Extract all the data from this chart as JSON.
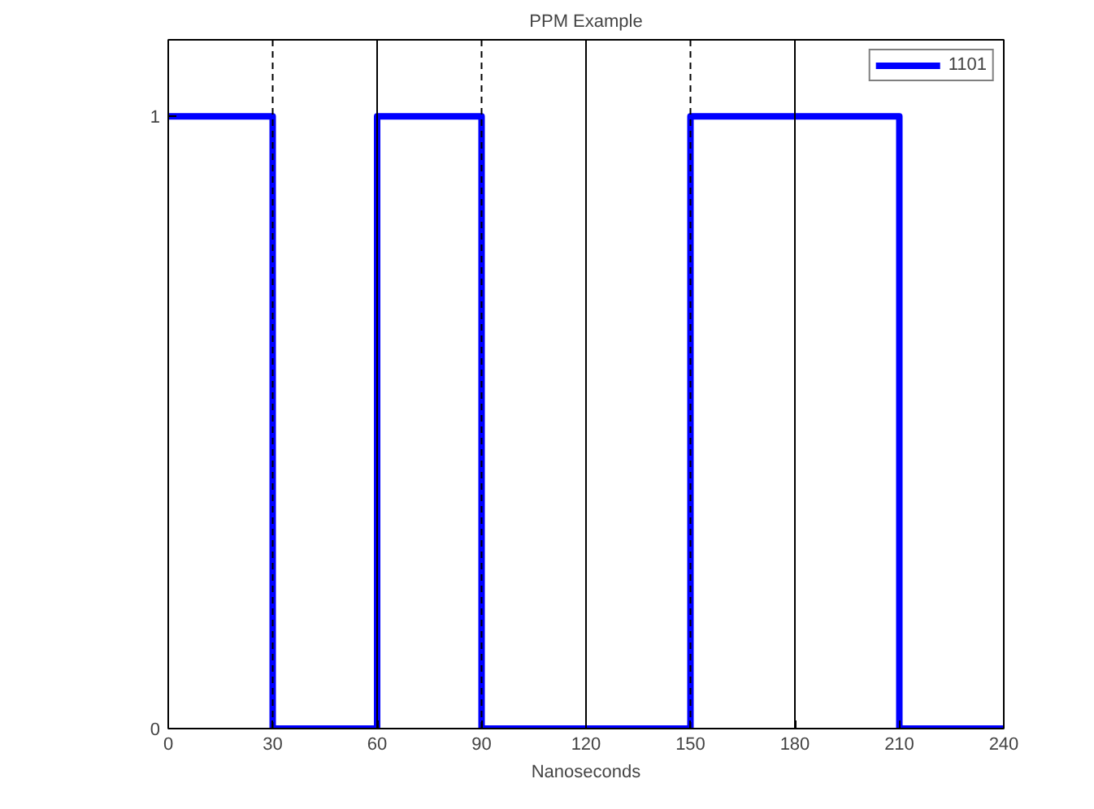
{
  "chart_data": {
    "type": "step",
    "title": "PPM Example",
    "xlabel": "Nanoseconds",
    "x": [
      0,
      30,
      60,
      90,
      150,
      210,
      240
    ],
    "series": [
      {
        "name": "1101",
        "color": "#0000ff",
        "values": [
          1,
          0,
          1,
          0,
          1,
          0,
          0
        ]
      }
    ],
    "xlim": [
      0,
      240
    ],
    "xticks": [
      0,
      30,
      60,
      90,
      120,
      150,
      180,
      210,
      240
    ],
    "ylim": [
      0,
      1.125
    ],
    "yticks": [
      0,
      1
    ],
    "ref_lines": [
      {
        "axis": "x",
        "value": 30,
        "line_style": "dashed",
        "color": "#000000"
      },
      {
        "axis": "x",
        "value": 90,
        "line_style": "dashed",
        "color": "#000000"
      },
      {
        "axis": "x",
        "value": 150,
        "line_style": "dashed",
        "color": "#000000"
      },
      {
        "axis": "x",
        "value": 60,
        "line_style": "solid",
        "color": "#000000"
      },
      {
        "axis": "x",
        "value": 120,
        "line_style": "solid",
        "color": "#000000"
      },
      {
        "axis": "x",
        "value": 180,
        "line_style": "solid",
        "color": "#000000"
      }
    ],
    "grid": false,
    "legend": "top right",
    "line_style": "solid"
  }
}
